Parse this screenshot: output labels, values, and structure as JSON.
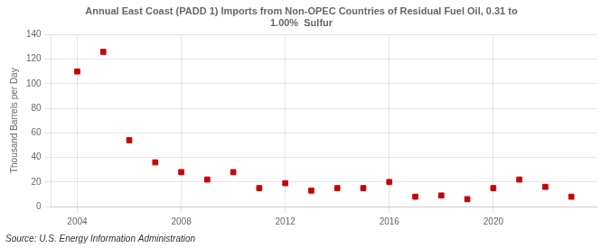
{
  "chart_data": {
    "type": "scatter",
    "title": [
      "Annual East Coast (PADD 1) Imports from Non-OPEC Countries of Residual Fuel Oil, 0.31 to",
      "1.00%  Sulfur"
    ],
    "ylabel": "Thousand Barrels per Day",
    "annotations": [
      "Source: U.S. Energy Information Administration"
    ],
    "x": [
      2004,
      2005,
      2006,
      2007,
      2008,
      2009,
      2010,
      2011,
      2012,
      2013,
      2014,
      2015,
      2016,
      2017,
      2018,
      2019,
      2020,
      2021,
      2022,
      2023
    ],
    "values": [
      110,
      126,
      54,
      36,
      28,
      22,
      28,
      15,
      19,
      13,
      15,
      15,
      20,
      8,
      9,
      6,
      15,
      22,
      16,
      8
    ],
    "color": "#cc0000",
    "marker": "square",
    "xlim": [
      2003,
      2024
    ],
    "xticks": [
      2004,
      2008,
      2012,
      2016,
      2020
    ],
    "ylim": [
      0,
      140
    ],
    "yticks": [
      0,
      20,
      40,
      60,
      80,
      100,
      120,
      140
    ],
    "grid": true
  }
}
